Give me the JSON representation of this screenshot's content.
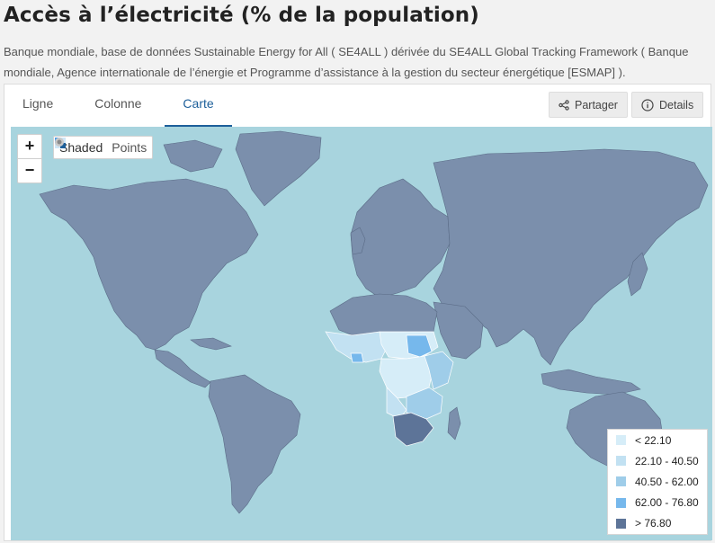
{
  "page": {
    "title": "Accès à l’électricité (% de la population)",
    "source": "Banque mondiale, base de données Sustainable Energy for All ( SE4ALL ) dérivée du SE4ALL Global Tracking Framework ( Banque mondiale, Agence internationale de l’énergie et Programme d’assistance à la gestion du secteur énergétique [ESMAP] )."
  },
  "tabs": [
    {
      "label": "Ligne",
      "active": false
    },
    {
      "label": "Colonne",
      "active": false
    },
    {
      "label": "Carte",
      "active": true
    }
  ],
  "toolbar": {
    "share_label": "Partager",
    "details_label": "Details",
    "share_icon": "share-icon",
    "details_icon": "info-icon"
  },
  "map": {
    "zoom_in": "+",
    "zoom_out": "−",
    "mode_shaded": "Shaded",
    "mode_points": "Points",
    "selected_mode": "Shaded",
    "ocean_color": "#a8d4de",
    "land_color": "#7b8fac",
    "accent_color": "#1d5f9a"
  },
  "legend": [
    {
      "label": "< 22.10",
      "color": "#d6edf8"
    },
    {
      "label": "22.10 - 40.50",
      "color": "#c2e1f2"
    },
    {
      "label": "40.50 - 62.00",
      "color": "#9fcde9"
    },
    {
      "label": "62.00 - 76.80",
      "color": "#76b8ec"
    },
    {
      "label": "> 76.80",
      "color": "#5d7498"
    }
  ]
}
